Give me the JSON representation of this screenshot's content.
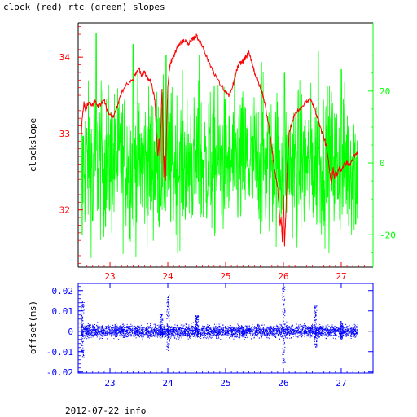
{
  "title": "clock (red) rtc (green) slopes",
  "footer": "2012-07-22 info",
  "colors": {
    "clock": "#ff0000",
    "rtc": "#00ff00",
    "offset": "#0000ff",
    "axis_black": "#000000"
  },
  "chart_data": [
    {
      "type": "line",
      "ylabel": "clockslope",
      "y2label": "",
      "xlim": [
        22.45,
        27.55
      ],
      "ylim": [
        31.25,
        34.45
      ],
      "y2lim": [
        -29.0,
        39.0
      ],
      "grid": false,
      "xticks": [
        23,
        24,
        25,
        26,
        27
      ],
      "yticks": [
        32,
        33,
        34
      ],
      "y2ticks": [
        -20,
        0,
        20
      ],
      "y2tick_labels": [
        "-20",
        "0",
        "20"
      ],
      "series": [
        {
          "name": "clock",
          "axis": "left",
          "x": [
            22.5,
            22.52,
            22.55,
            22.58,
            22.62,
            22.68,
            22.75,
            22.8,
            22.85,
            22.9,
            22.95,
            23.0,
            23.05,
            23.1,
            23.15,
            23.2,
            23.3,
            23.4,
            23.45,
            23.5,
            23.55,
            23.6,
            23.65,
            23.7,
            23.75,
            23.78,
            23.8,
            23.83,
            23.85,
            23.87,
            23.88,
            23.9,
            23.92,
            23.93,
            23.94,
            23.96,
            23.98,
            24.0,
            24.03,
            24.06,
            24.1,
            24.15,
            24.2,
            24.25,
            24.3,
            24.35,
            24.4,
            24.45,
            24.5,
            24.55,
            24.6,
            24.65,
            24.7,
            24.8,
            24.9,
            25.0,
            25.05,
            25.1,
            25.15,
            25.2,
            25.25,
            25.3,
            25.35,
            25.4,
            25.45,
            25.5,
            25.55,
            25.6,
            25.65,
            25.7,
            25.75,
            25.8,
            25.85,
            25.9,
            25.92,
            25.94,
            25.96,
            25.98,
            26.0,
            26.02,
            26.04,
            26.06,
            26.08,
            26.1,
            26.15,
            26.2,
            26.3,
            26.4,
            26.45,
            26.5,
            26.55,
            26.6,
            26.65,
            26.7,
            26.75,
            26.8,
            26.83,
            26.86,
            26.88,
            26.9,
            26.93,
            26.96,
            27.0,
            27.05,
            27.1,
            27.15,
            27.2,
            27.25,
            27.28
          ],
          "y": [
            32.95,
            33.2,
            33.4,
            33.3,
            33.4,
            33.38,
            33.42,
            33.35,
            33.4,
            33.45,
            33.3,
            33.25,
            33.2,
            33.3,
            33.4,
            33.55,
            33.65,
            33.7,
            33.8,
            33.85,
            33.75,
            33.8,
            33.72,
            33.7,
            33.55,
            33.4,
            33.0,
            32.7,
            32.95,
            32.6,
            33.1,
            33.6,
            32.9,
            32.4,
            32.7,
            32.4,
            33.1,
            33.6,
            33.85,
            33.95,
            34.0,
            34.1,
            34.18,
            34.2,
            34.22,
            34.18,
            34.2,
            34.25,
            34.28,
            34.2,
            34.15,
            34.05,
            33.95,
            33.8,
            33.65,
            33.55,
            33.5,
            33.55,
            33.7,
            33.85,
            33.92,
            33.95,
            34.0,
            34.05,
            33.95,
            33.8,
            33.7,
            33.6,
            33.5,
            33.3,
            33.1,
            32.8,
            32.5,
            32.3,
            32.1,
            31.8,
            31.9,
            31.6,
            32.2,
            31.55,
            31.9,
            32.4,
            32.75,
            33.0,
            33.15,
            33.25,
            33.35,
            33.42,
            33.45,
            33.4,
            33.3,
            33.2,
            33.05,
            32.95,
            32.8,
            32.5,
            32.35,
            32.55,
            32.42,
            32.5,
            32.45,
            32.55,
            32.52,
            32.6,
            32.62,
            32.58,
            32.68,
            32.72,
            32.75
          ]
        },
        {
          "name": "rtc",
          "axis": "right",
          "x_start": 22.5,
          "x_end": 27.28,
          "mean": 0,
          "spread": 10,
          "peaks": [
            {
              "x": 22.76,
              "y2": 36
            },
            {
              "x": 23.4,
              "y2": 33
            },
            {
              "x": 23.97,
              "y2": 30
            },
            {
              "x": 24.55,
              "y2": 30
            },
            {
              "x": 25.62,
              "y2": 28
            },
            {
              "x": 26.02,
              "y2": 25
            },
            {
              "x": 26.6,
              "y2": 31
            },
            {
              "x": 27.0,
              "y2": 26
            }
          ],
          "troughs": [
            {
              "x": 22.52,
              "y2": -20
            },
            {
              "x": 22.7,
              "y2": -16
            },
            {
              "x": 23.88,
              "y2": -12
            },
            {
              "x": 26.0,
              "y2": -15
            },
            {
              "x": 27.25,
              "y2": -17
            }
          ]
        }
      ]
    },
    {
      "type": "scatter",
      "ylabel": "offset(ms)",
      "xlim": [
        22.45,
        27.55
      ],
      "ylim": [
        -0.0205,
        0.0235
      ],
      "grid": false,
      "xticks": [
        23,
        24,
        25,
        26,
        27
      ],
      "yticks": [
        -0.02,
        -0.01,
        0,
        0.01,
        0.02
      ],
      "ytick_labels": [
        "-0.02",
        "-0.01",
        "0",
        "0.01",
        "0.02"
      ],
      "series": [
        {
          "name": "offset",
          "x_start": 22.5,
          "x_end": 27.28,
          "band": 0.003,
          "bursts": [
            {
              "x": 22.52,
              "y_min": -0.013,
              "y_max": 0.015
            },
            {
              "x": 23.88,
              "y_min": -0.003,
              "y_max": 0.009
            },
            {
              "x": 24.0,
              "y_min": -0.01,
              "y_max": 0.018
            },
            {
              "x": 24.5,
              "y_min": -0.003,
              "y_max": 0.008
            },
            {
              "x": 26.0,
              "y_min": -0.016,
              "y_max": 0.022
            },
            {
              "x": 26.55,
              "y_min": -0.008,
              "y_max": 0.013
            },
            {
              "x": 27.0,
              "y_min": -0.004,
              "y_max": 0.005
            }
          ]
        }
      ]
    }
  ]
}
